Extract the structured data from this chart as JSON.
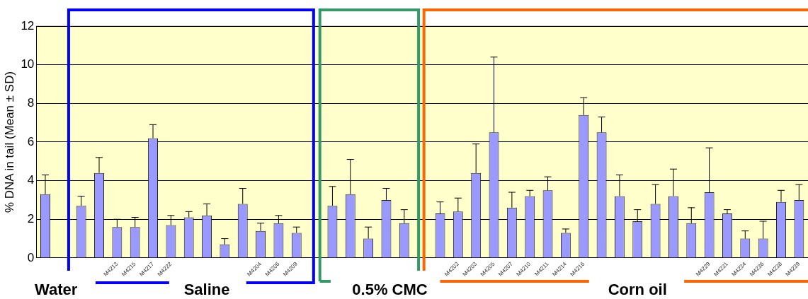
{
  "chart_data": {
    "type": "bar",
    "ylabel": "% DNA in tail (Mean ± SD)",
    "categories": [
      null,
      null,
      null,
      null,
      "M4213",
      "M4215",
      "M4217",
      "M4222",
      null,
      null,
      null,
      null,
      "M4204",
      "M4206",
      "M4209",
      null,
      null,
      null,
      null,
      null,
      null,
      null,
      null,
      "M4202",
      "M4203",
      "M4205",
      "M4207",
      "M4210",
      "M4211",
      "M4214",
      "M4216",
      null,
      null,
      null,
      null,
      null,
      null,
      "M4229",
      "M4231",
      "M4234",
      "M4236",
      "M4238",
      "M4239"
    ],
    "values": [
      3.3,
      null,
      2.7,
      4.4,
      1.6,
      1.6,
      6.2,
      1.7,
      2.1,
      2.2,
      0.7,
      2.8,
      1.4,
      1.8,
      1.3,
      null,
      2.7,
      3.3,
      1.0,
      3.0,
      1.8,
      null,
      2.3,
      2.4,
      4.4,
      6.5,
      2.6,
      3.2,
      3.5,
      1.3,
      7.4,
      6.5,
      3.2,
      1.9,
      2.8,
      3.2,
      1.8,
      3.4,
      2.3,
      1.0,
      1.0,
      2.9,
      3.0
    ],
    "errors": [
      [
        3.3,
        4.3
      ],
      null,
      [
        2.7,
        3.2
      ],
      [
        4.4,
        5.2
      ],
      [
        1.6,
        2.0
      ],
      [
        1.6,
        2.1
      ],
      [
        6.2,
        6.9
      ],
      [
        1.7,
        2.2
      ],
      [
        2.1,
        2.4
      ],
      [
        2.2,
        2.8
      ],
      [
        0.7,
        1.0
      ],
      [
        2.8,
        3.6
      ],
      [
        1.4,
        1.8
      ],
      [
        1.8,
        2.2
      ],
      [
        1.3,
        1.6
      ],
      null,
      [
        2.7,
        3.7
      ],
      [
        3.3,
        5.1
      ],
      [
        1.0,
        1.6
      ],
      [
        3.0,
        3.6
      ],
      [
        1.8,
        2.5
      ],
      null,
      [
        2.3,
        2.9
      ],
      [
        2.4,
        3.1
      ],
      [
        4.4,
        5.9
      ],
      [
        6.5,
        10.4
      ],
      [
        2.6,
        3.4
      ],
      [
        3.2,
        3.5
      ],
      [
        3.5,
        4.2
      ],
      [
        1.3,
        1.5
      ],
      [
        7.4,
        8.3
      ],
      [
        6.5,
        7.3
      ],
      [
        3.2,
        4.3
      ],
      [
        1.9,
        2.5
      ],
      [
        2.8,
        3.8
      ],
      [
        3.2,
        4.6
      ],
      [
        1.8,
        2.6
      ],
      [
        3.4,
        5.7
      ],
      [
        2.3,
        2.5
      ],
      [
        1.0,
        1.4
      ],
      [
        1.0,
        1.9
      ],
      [
        2.9,
        3.5
      ],
      [
        3.0,
        3.8
      ]
    ],
    "color": "#9999ff",
    "ylim": [
      0,
      12
    ],
    "yticks": [
      0,
      2,
      4,
      6,
      8,
      10,
      12
    ],
    "grid": "y",
    "legend": false,
    "annotations": [
      "Water",
      "Saline",
      "0.5% CMC",
      "Corn oil"
    ]
  }
}
